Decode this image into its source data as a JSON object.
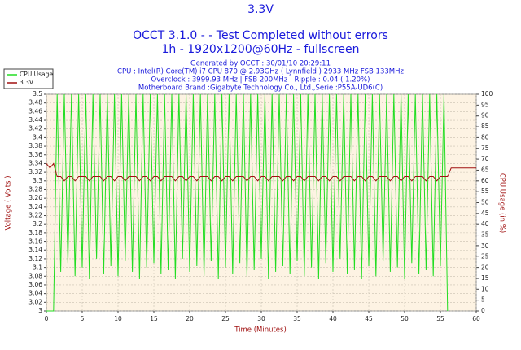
{
  "chart_data": {
    "type": "line",
    "title": "3.3V",
    "subtitle": "OCCT 3.1.0 -  - Test Completed without errors",
    "subtitle2": "1h - 1920x1200@60Hz - fullscreen",
    "info": [
      "Generated by OCCT : 30/01/10 20:29:11",
      "CPU : Intel(R) Core(TM) i7 CPU 870 @ 2.93GHz ( Lynnfield ) 2933 MHz FSB 133MHz",
      "Overclock : 3999.93 MHz | FSB 200MHz | Ripple : 0.04 ( 1.20%)",
      "Motherboard Brand :Gigabyte Technology Co., Ltd.,Serie :P55A-UD6(C)"
    ],
    "x_label": "Time (Minutes)",
    "y_label": "Voltage ( Volts )",
    "y2_label": "CPU Usage (in %)",
    "xlim": [
      0,
      60
    ],
    "xticks": [
      0,
      5,
      10,
      15,
      20,
      25,
      30,
      35,
      40,
      45,
      50,
      55,
      60
    ],
    "ylim": [
      3,
      3.5
    ],
    "yticks": [
      3.5,
      3.48,
      3.46,
      3.44,
      3.42,
      3.4,
      3.38,
      3.36,
      3.34,
      3.32,
      3.3,
      3.28,
      3.26,
      3.24,
      3.22,
      3.2,
      3.18,
      3.16,
      3.14,
      3.12,
      3.1,
      3.08,
      3.06,
      3.04,
      3.02,
      3
    ],
    "y2lim": [
      0,
      100
    ],
    "y2ticks": [
      100,
      95,
      90,
      85,
      80,
      75,
      70,
      65,
      60,
      55,
      50,
      45,
      40,
      35,
      30,
      25,
      20,
      15,
      10,
      5,
      0
    ],
    "grid": true,
    "legend": "upper left",
    "x": [
      0,
      0.5,
      1,
      1.5,
      2,
      2.5,
      3,
      3.5,
      4,
      4.5,
      5,
      5.5,
      6,
      6.5,
      7,
      7.5,
      8,
      8.5,
      9,
      9.5,
      10,
      10.5,
      11,
      11.5,
      12,
      12.5,
      13,
      13.5,
      14,
      14.5,
      15,
      15.5,
      16,
      16.5,
      17,
      17.5,
      18,
      18.5,
      19,
      19.5,
      20,
      20.5,
      21,
      21.5,
      22,
      22.5,
      23,
      23.5,
      24,
      24.5,
      25,
      25.5,
      26,
      26.5,
      27,
      27.5,
      28,
      28.5,
      29,
      29.5,
      30,
      30.5,
      31,
      31.5,
      32,
      32.5,
      33,
      33.5,
      34,
      34.5,
      35,
      35.5,
      36,
      36.5,
      37,
      37.5,
      38,
      38.5,
      39,
      39.5,
      40,
      40.5,
      41,
      41.5,
      42,
      42.5,
      43,
      43.5,
      44,
      44.5,
      45,
      45.5,
      46,
      46.5,
      47,
      47.5,
      48,
      48.5,
      49,
      49.5,
      50,
      50.5,
      51,
      51.5,
      52,
      52.5,
      53,
      53.5,
      54,
      54.5,
      55,
      55.5,
      56,
      56.5,
      57,
      57.5,
      58,
      58.5,
      59,
      59.5,
      60
    ],
    "series": [
      {
        "name": "CPU Usage",
        "color": "#22dd22",
        "axis": "y2",
        "values": [
          0,
          0,
          0,
          100,
          18,
          100,
          22,
          100,
          16,
          100,
          20,
          100,
          15,
          100,
          24,
          100,
          17,
          100,
          21,
          100,
          16,
          100,
          23,
          100,
          18,
          100,
          15,
          100,
          20,
          100,
          22,
          100,
          17,
          100,
          19,
          100,
          15,
          100,
          24,
          100,
          18,
          100,
          21,
          100,
          16,
          100,
          23,
          100,
          15,
          100,
          20,
          100,
          17,
          100,
          22,
          100,
          16,
          100,
          19,
          100,
          24,
          100,
          15,
          100,
          18,
          100,
          21,
          100,
          17,
          100,
          23,
          100,
          16,
          100,
          20,
          100,
          15,
          100,
          22,
          100,
          18,
          100,
          24,
          100,
          17,
          100,
          19,
          100,
          15,
          100,
          21,
          100,
          16,
          100,
          23,
          100,
          18,
          100,
          20,
          100,
          15,
          100,
          22,
          100,
          17,
          100,
          19,
          100,
          16,
          100,
          21,
          100,
          0,
          null,
          null,
          null,
          null,
          null,
          null,
          null,
          null
        ]
      },
      {
        "name": "3.3V",
        "color": "#a01010",
        "values": [
          3.34,
          3.33,
          3.34,
          3.31,
          3.31,
          3.3,
          3.31,
          3.31,
          3.3,
          3.31,
          3.31,
          3.31,
          3.3,
          3.31,
          3.31,
          3.31,
          3.3,
          3.31,
          3.31,
          3.3,
          3.31,
          3.31,
          3.3,
          3.31,
          3.31,
          3.31,
          3.3,
          3.31,
          3.31,
          3.3,
          3.31,
          3.31,
          3.3,
          3.31,
          3.31,
          3.31,
          3.3,
          3.31,
          3.31,
          3.3,
          3.31,
          3.31,
          3.3,
          3.31,
          3.31,
          3.31,
          3.3,
          3.31,
          3.31,
          3.3,
          3.31,
          3.31,
          3.3,
          3.31,
          3.31,
          3.31,
          3.3,
          3.31,
          3.31,
          3.3,
          3.31,
          3.31,
          3.3,
          3.31,
          3.31,
          3.31,
          3.3,
          3.31,
          3.31,
          3.3,
          3.31,
          3.31,
          3.3,
          3.31,
          3.31,
          3.31,
          3.3,
          3.31,
          3.31,
          3.3,
          3.31,
          3.31,
          3.3,
          3.31,
          3.31,
          3.31,
          3.3,
          3.31,
          3.31,
          3.3,
          3.31,
          3.31,
          3.3,
          3.31,
          3.31,
          3.31,
          3.3,
          3.31,
          3.31,
          3.3,
          3.31,
          3.31,
          3.3,
          3.31,
          3.31,
          3.31,
          3.3,
          3.31,
          3.31,
          3.3,
          3.31,
          3.31,
          3.31,
          3.33,
          3.33,
          3.33,
          3.33,
          3.33,
          3.33,
          3.33,
          3.33
        ]
      }
    ]
  }
}
